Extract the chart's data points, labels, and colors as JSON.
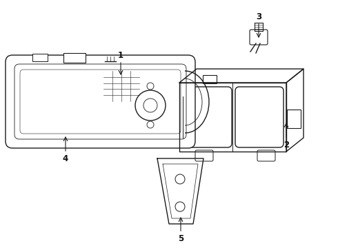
{
  "background_color": "#ffffff",
  "line_color": "#1a1a1a",
  "line_width": 1.0,
  "figsize": [
    4.9,
    3.6
  ],
  "dpi": 100
}
